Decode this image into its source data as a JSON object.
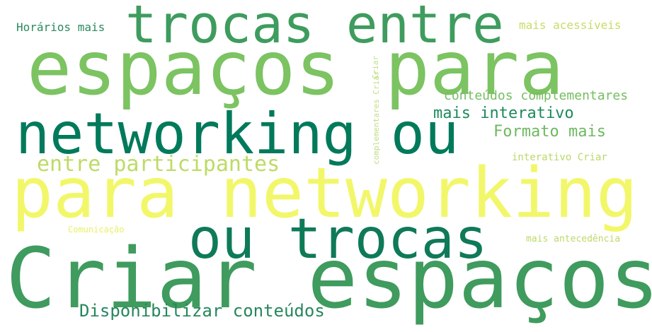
{
  "word_cloud": {
    "words": [
      {
        "text": "trocas entre"
      },
      {
        "text": "espaços para"
      },
      {
        "text": "networking ou"
      },
      {
        "text": "para networking"
      },
      {
        "text": "ou trocas"
      },
      {
        "text": "Criar espaços"
      },
      {
        "text": "Disponibilizar conteúdos"
      },
      {
        "text": "entre participantes"
      },
      {
        "text": "Horários mais"
      },
      {
        "text": "mais acessíveis"
      },
      {
        "text": "conteúdos complementares"
      },
      {
        "text": "mais interativo"
      },
      {
        "text": "Formato mais"
      },
      {
        "text": "interativo Criar"
      },
      {
        "text": "Comunicação"
      },
      {
        "text": "mais antecedência"
      },
      {
        "text": "Criar"
      },
      {
        "text": "complementares Criar"
      }
    ],
    "colors": {
      "dark_green": "#007a5b",
      "mid_green": "#3e9c5e",
      "light_green": "#7cc362",
      "lime": "#bddb66",
      "yellow": "#f2f76a"
    }
  }
}
